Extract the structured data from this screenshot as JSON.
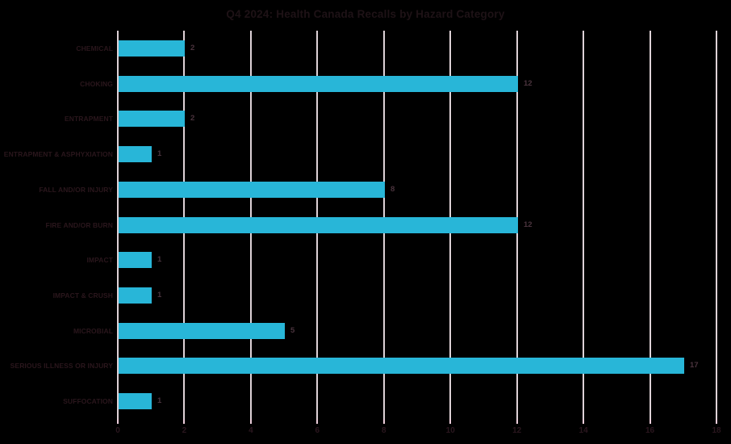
{
  "title": "Q4 2024: Health Canada Recalls by Hazard Category",
  "colors": {
    "background": "#000000",
    "bar": "#28b6d8",
    "gridline": "#ded2d7",
    "tick_mark": "#eaccd9",
    "title_text": "#1e1216",
    "category_text": "#2a161c",
    "value_text": "#4a333d",
    "axis_text": "#2a161e"
  },
  "chart_data": {
    "type": "bar",
    "orientation": "horizontal",
    "title": "Q4 2024: Health Canada Recalls by Hazard Category",
    "categories": [
      "CHEMICAL",
      "CHOKING",
      "ENTRAPMENT",
      "ENTRAPMENT & ASPHYXIATION",
      "FALL AND/OR INJURY",
      "FIRE AND/OR BURN",
      "IMPACT",
      "IMPACT & CRUSH",
      "MICROBIAL",
      "SERIOUS ILLNESS OR INJURY",
      "SUFFOCATION"
    ],
    "values": [
      2,
      12,
      2,
      1,
      8,
      12,
      1,
      1,
      5,
      17,
      1
    ],
    "value_labels": [
      "2",
      "12",
      "2",
      "1",
      "8",
      "12",
      "1",
      "1",
      "5",
      "17",
      "1"
    ],
    "xlabel": "",
    "ylabel": "",
    "xlim": [
      0,
      18
    ],
    "x_ticks": [
      0,
      2,
      4,
      6,
      8,
      10,
      12,
      14,
      16,
      18
    ],
    "grid": true,
    "legend": false
  }
}
